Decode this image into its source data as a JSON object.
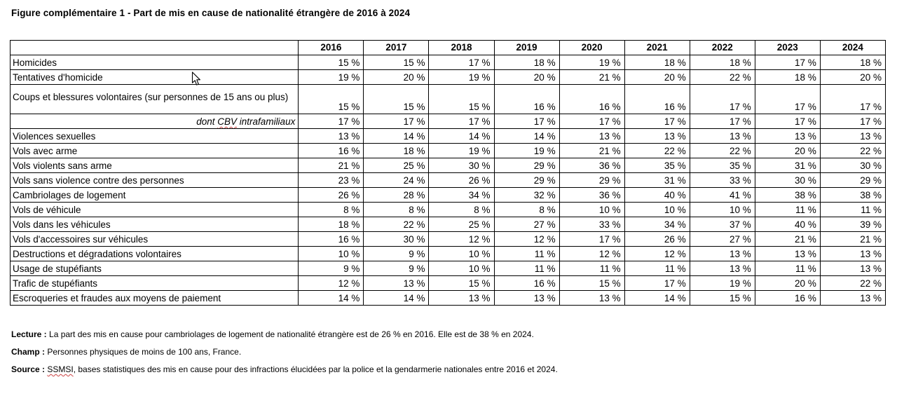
{
  "title": "Figure complémentaire 1 - Part de mis en cause de nationalité étrangère de 2016 à 2024",
  "table": {
    "unit": "%",
    "years": [
      "2016",
      "2017",
      "2018",
      "2019",
      "2020",
      "2021",
      "2022",
      "2023",
      "2024"
    ],
    "rows": [
      {
        "label": "Homicides",
        "values": [
          15,
          15,
          17,
          18,
          19,
          18,
          18,
          17,
          18
        ]
      },
      {
        "label": "Tentatives d'homicide",
        "values": [
          19,
          20,
          19,
          20,
          21,
          20,
          22,
          18,
          20
        ]
      },
      {
        "label": "Coups et blessures volontaires (sur personnes de 15 ans ou plus)",
        "tall": true,
        "values": [
          15,
          15,
          15,
          16,
          16,
          16,
          17,
          17,
          17
        ]
      },
      {
        "label_parts": [
          {
            "text": "dont "
          },
          {
            "text": "CBV",
            "squiggle": true
          },
          {
            "text": " intrafamiliaux"
          }
        ],
        "dont": true,
        "values": [
          17,
          17,
          17,
          17,
          17,
          17,
          17,
          17,
          17
        ]
      },
      {
        "label": "Violences sexuelles",
        "values": [
          13,
          14,
          14,
          14,
          13,
          13,
          13,
          13,
          13
        ]
      },
      {
        "label": "Vols avec arme",
        "values": [
          16,
          18,
          19,
          19,
          21,
          22,
          22,
          20,
          22
        ]
      },
      {
        "label": "Vols violents sans arme",
        "values": [
          21,
          25,
          30,
          29,
          36,
          35,
          35,
          31,
          30
        ]
      },
      {
        "label": "Vols sans violence contre des personnes",
        "values": [
          23,
          24,
          26,
          29,
          29,
          31,
          33,
          30,
          29
        ]
      },
      {
        "label": "Cambriolages de logement",
        "values": [
          26,
          28,
          34,
          32,
          36,
          40,
          41,
          38,
          38
        ]
      },
      {
        "label": "Vols de véhicule",
        "values": [
          8,
          8,
          8,
          8,
          10,
          10,
          10,
          11,
          11
        ]
      },
      {
        "label": "Vols dans les véhicules",
        "values": [
          18,
          22,
          25,
          27,
          33,
          34,
          37,
          40,
          39
        ]
      },
      {
        "label": "Vols d'accessoires sur véhicules",
        "values": [
          16,
          30,
          12,
          12,
          17,
          26,
          27,
          21,
          21
        ]
      },
      {
        "label": "Destructions et dégradations volontaires",
        "values": [
          10,
          9,
          10,
          11,
          12,
          12,
          13,
          13,
          13
        ]
      },
      {
        "label": "Usage de stupéfiants",
        "values": [
          9,
          9,
          10,
          11,
          11,
          11,
          13,
          11,
          13
        ]
      },
      {
        "label": "Trafic de stupéfiants",
        "values": [
          12,
          13,
          15,
          16,
          15,
          17,
          19,
          20,
          22
        ]
      },
      {
        "label": "Escroqueries et fraudes aux moyens de paiement",
        "values": [
          14,
          14,
          13,
          13,
          13,
          14,
          15,
          16,
          13
        ]
      }
    ]
  },
  "notes": [
    {
      "name": "note-lecture",
      "parts": [
        {
          "text": "Lecture :",
          "bold": true
        },
        {
          "text": " La part des mis en cause pour cambriolages de logement de nationalité étrangère est de 26 % en 2016. Elle est de 38 % en 2024."
        }
      ]
    },
    {
      "name": "note-champ",
      "parts": [
        {
          "text": "Champ :",
          "bold": true
        },
        {
          "text": " Personnes physiques de moins de 100 ans, France."
        }
      ]
    },
    {
      "name": "note-source",
      "parts": [
        {
          "text": "Source :",
          "bold": true
        },
        {
          "text": " "
        },
        {
          "text": "SSMSI",
          "squiggle": true
        },
        {
          "text": ", bases statistiques des mis en cause pour des infractions élucidées par la police et la gendarmerie nationales entre 2016 et 2024."
        }
      ]
    }
  ],
  "colors": {
    "text": "#000000",
    "border": "#000000",
    "spellcheck_squiggle": "#cc4444",
    "background": "#ffffff"
  }
}
